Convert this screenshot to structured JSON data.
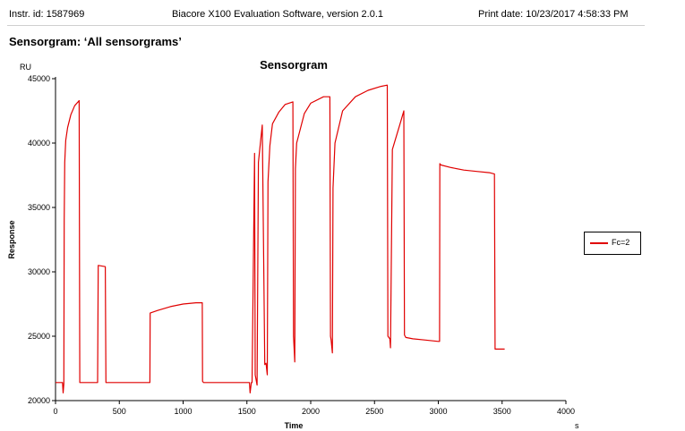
{
  "header": {
    "instrument_id": "Instr. id: 1587969",
    "software": "Biacore X100 Evaluation Software, version 2.0.1",
    "print_date": "Print date: 10/23/2017 4:58:33 PM"
  },
  "report_title": "Sensorgram: ‘All sensorgrams’",
  "colors": {
    "series": "#e00000",
    "axis": "#000000"
  },
  "chart_data": {
    "type": "line",
    "title": "Sensorgram",
    "xlabel": "Time",
    "xunit": "s",
    "ylabel": "Response",
    "yunit": "RU",
    "xlim": [
      0,
      4000
    ],
    "ylim": [
      20000,
      45000
    ],
    "xticks": [
      0,
      500,
      1000,
      1500,
      2000,
      2500,
      3000,
      3500,
      4000
    ],
    "yticks": [
      20000,
      25000,
      30000,
      35000,
      40000,
      45000
    ],
    "grid": false,
    "legend_position": "right",
    "series": [
      {
        "name": "Fc=2",
        "color": "#e00000",
        "x": [
          0,
          55,
          60,
          65,
          68,
          72,
          80,
          95,
          120,
          150,
          185,
          190,
          200,
          330,
          335,
          390,
          395,
          740,
          742,
          800,
          900,
          1000,
          1100,
          1150,
          1152,
          1160,
          1520,
          1525,
          1535,
          1540,
          1560,
          1565,
          1580,
          1590,
          1620,
          1640,
          1650,
          1660,
          1665,
          1680,
          1700,
          1750,
          1800,
          1860,
          1865,
          1875,
          1880,
          1890,
          1950,
          2000,
          2100,
          2150,
          2155,
          2160,
          2170,
          2175,
          2190,
          2250,
          2350,
          2450,
          2550,
          2600,
          2605,
          2620,
          2625,
          2640,
          2700,
          2730,
          2735,
          2745,
          2800,
          2900,
          3000,
          3010,
          3012,
          3020,
          3100,
          3200,
          3300,
          3400,
          3440,
          3445,
          3450,
          3520
        ],
        "values": [
          21400,
          21400,
          20600,
          21300,
          34000,
          38500,
          40200,
          41200,
          42200,
          42900,
          43300,
          21400,
          21400,
          21400,
          30500,
          30400,
          21400,
          21400,
          26800,
          27000,
          27300,
          27500,
          27600,
          27600,
          21500,
          21400,
          21400,
          20600,
          21400,
          21400,
          39200,
          22000,
          21200,
          38500,
          41400,
          22800,
          22900,
          22000,
          37000,
          39800,
          41500,
          42400,
          43000,
          43200,
          25000,
          23000,
          38000,
          40000,
          42300,
          43100,
          43600,
          43600,
          25000,
          24700,
          23700,
          36500,
          40000,
          42500,
          43600,
          44100,
          44400,
          44500,
          25000,
          24800,
          24100,
          39500,
          41500,
          42500,
          25100,
          24900,
          24800,
          24700,
          24600,
          24600,
          38400,
          38300,
          38100,
          37900,
          37800,
          37700,
          37600,
          24000,
          24000,
          24000
        ]
      }
    ]
  }
}
